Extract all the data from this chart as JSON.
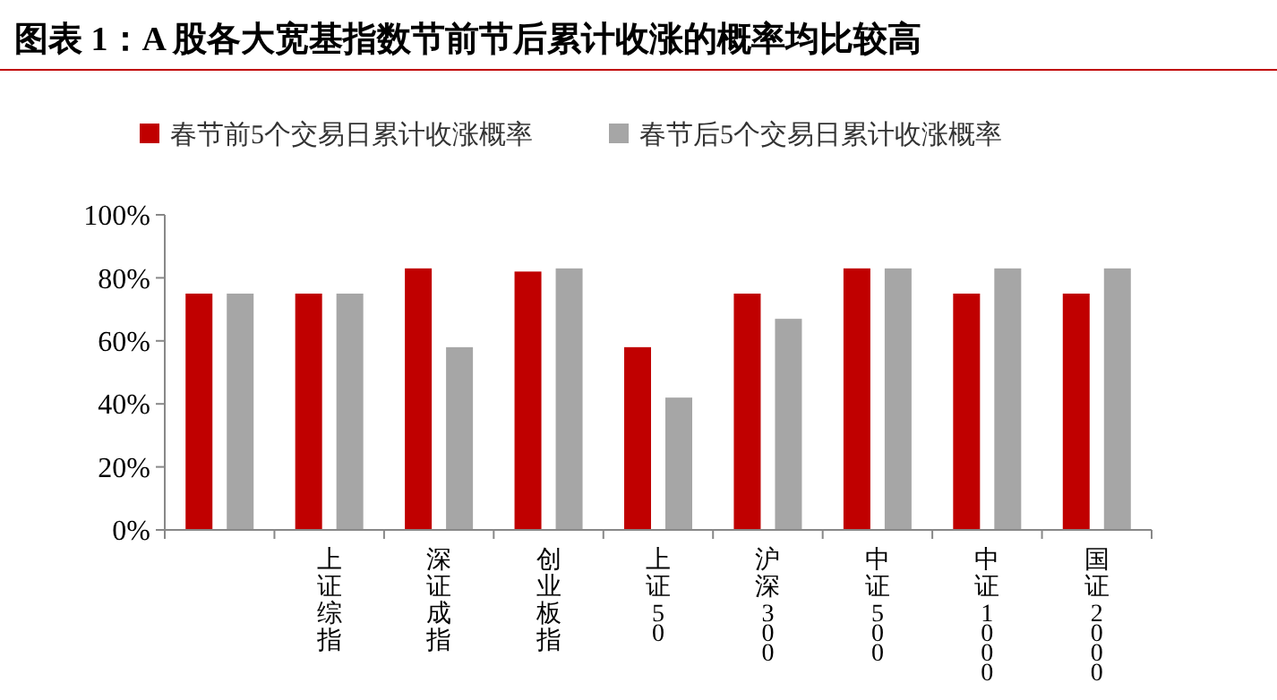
{
  "chart_data": {
    "type": "bar",
    "title": "图表 1：A 股各大宽基指数节前节后累计收涨的概率均比较高",
    "categories": [
      null,
      "上证综指",
      "深证成指",
      "创业板指",
      "上证50",
      "沪深300",
      "中证500",
      "中证1000",
      "国证2000"
    ],
    "series": [
      {
        "name": "春节前5个交易日累计收涨概率",
        "color": "#c00000",
        "values": [
          75,
          75,
          83,
          82,
          58,
          75,
          83,
          75,
          75
        ]
      },
      {
        "name": "春节后5个交易日累计收涨概率",
        "color": "#a6a6a6",
        "values": [
          75,
          75,
          58,
          83,
          42,
          67,
          83,
          83,
          83
        ]
      }
    ],
    "ylim": [
      0,
      100
    ],
    "yticks": [
      {
        "value": 0,
        "label": "0%"
      },
      {
        "value": 20,
        "label": "20%"
      },
      {
        "value": 40,
        "label": "40%"
      },
      {
        "value": 60,
        "label": "60%"
      },
      {
        "value": 80,
        "label": "80%"
      },
      {
        "value": 100,
        "label": "100%"
      }
    ],
    "grid": false,
    "legend": "top"
  }
}
